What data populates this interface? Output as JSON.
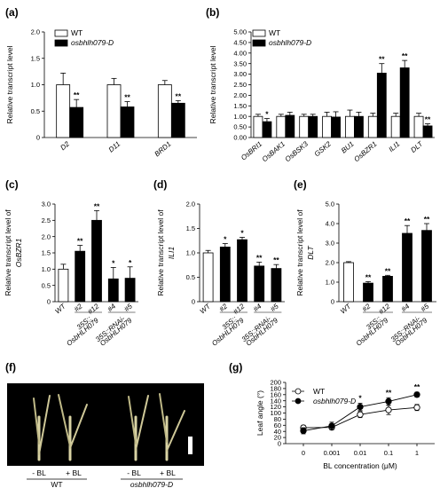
{
  "panels": {
    "a": "(a)",
    "b": "(b)",
    "c": "(c)",
    "d": "(d)",
    "e": "(e)",
    "f": "(f)",
    "g": "(g)"
  },
  "photo": {
    "groups": [
      {
        "name": "WT",
        "italic": false,
        "treatments": [
          "- BL",
          "+ BL"
        ]
      },
      {
        "name": "osbhlh079-D",
        "italic": true,
        "treatments": [
          "- BL",
          "+ BL"
        ]
      }
    ]
  },
  "chart_data": [
    {
      "id": "a",
      "type": "bar",
      "ylabel": "Relative transcript level",
      "ylim": [
        0,
        2.0
      ],
      "yticks": [
        0,
        0.5,
        1.0,
        1.5,
        2.0
      ],
      "ytick_labels": [
        "0",
        "0.5",
        "1.0",
        "1.5",
        "2.0"
      ],
      "categories": [
        "D2",
        "D11",
        "BRD1"
      ],
      "category_italic": true,
      "legend": {
        "position": "top-left"
      },
      "series": [
        {
          "name": "WT",
          "fill": "#ffffff",
          "values": [
            1.0,
            1.0,
            1.0
          ],
          "errors": [
            0.22,
            0.12,
            0.08
          ],
          "sig": [
            "",
            "",
            ""
          ]
        },
        {
          "name": "osbhlh079-D",
          "fill": "#000000",
          "values": [
            0.57,
            0.58,
            0.65
          ],
          "errors": [
            0.15,
            0.1,
            0.05
          ],
          "sig": [
            "**",
            "**",
            "**"
          ]
        }
      ]
    },
    {
      "id": "b",
      "type": "bar",
      "ylabel": "Relative transcript level",
      "ylim": [
        0,
        5.0
      ],
      "yticks": [
        0,
        0.5,
        1.0,
        1.5,
        2.0,
        2.5,
        3.0,
        3.5,
        4.0,
        4.5,
        5.0
      ],
      "ytick_labels": [
        "0.00",
        "0.50",
        "1.00",
        "1.50",
        "2.00",
        "2.50",
        "3.00",
        "3.50",
        "4.00",
        "4.50",
        "5.00"
      ],
      "categories": [
        "OsBRI1",
        "OsBAK1",
        "OsBSK3",
        "GSK2",
        "BU1",
        "OsBZR1",
        "ILI1",
        "DLT"
      ],
      "category_italic": true,
      "legend": {
        "position": "top-left"
      },
      "series": [
        {
          "name": "WT",
          "fill": "#ffffff",
          "values": [
            1.0,
            1.0,
            1.0,
            1.0,
            1.0,
            1.0,
            1.0,
            1.0
          ],
          "errors": [
            0.1,
            0.1,
            0.1,
            0.2,
            0.3,
            0.15,
            0.15,
            0.15
          ],
          "sig": [
            "",
            "",
            "",
            "",
            "",
            "",
            "",
            ""
          ]
        },
        {
          "name": "osbhlh079-D",
          "fill": "#000000",
          "values": [
            0.75,
            1.05,
            1.0,
            0.97,
            1.0,
            3.05,
            3.3,
            0.55
          ],
          "errors": [
            0.15,
            0.15,
            0.1,
            0.25,
            0.2,
            0.45,
            0.35,
            0.1
          ],
          "sig": [
            "*",
            "",
            "",
            "",
            "",
            "**",
            "**",
            "**"
          ]
        }
      ]
    },
    {
      "id": "c",
      "type": "bar",
      "ylabel": [
        "Relative transcript level of",
        "OsBZR1"
      ],
      "ylim": [
        0,
        3.0
      ],
      "yticks": [
        0,
        0.5,
        1.0,
        1.5,
        2.0,
        2.5,
        3.0
      ],
      "ytick_labels": [
        "0",
        "0.5",
        "1.0",
        "1.5",
        "2.0",
        "2.5",
        "3.0"
      ],
      "categories": [
        "WT",
        "#2",
        "#12",
        "#4",
        "#5"
      ],
      "groups": [
        {
          "lines": [
            "35S::",
            "OsbHLH079"
          ],
          "from": 1,
          "to": 2
        },
        {
          "lines": [
            "35S::RNAi-",
            "OsbHLH079"
          ],
          "from": 3,
          "to": 4
        }
      ],
      "values": [
        1.0,
        1.55,
        2.5,
        0.7,
        0.72
      ],
      "errors": [
        0.15,
        0.18,
        0.3,
        0.35,
        0.35
      ],
      "fills": [
        "#ffffff",
        "#000000",
        "#000000",
        "#000000",
        "#000000"
      ],
      "sig": [
        "",
        "**",
        "**",
        "*",
        "*"
      ]
    },
    {
      "id": "d",
      "type": "bar",
      "ylabel": [
        "Relative transcript level of",
        "ILI1"
      ],
      "ylim": [
        0,
        2.0
      ],
      "yticks": [
        0,
        0.5,
        1.0,
        1.5,
        2.0
      ],
      "ytick_labels": [
        "0",
        "0.5",
        "1.0",
        "1.5",
        "2.0"
      ],
      "categories": [
        "WT",
        "#2",
        "#12",
        "#4",
        "#5"
      ],
      "groups": [
        {
          "lines": [
            "35S::",
            "OsbHLH079"
          ],
          "from": 1,
          "to": 2
        },
        {
          "lines": [
            "35S::RNAi-",
            "OsbHLH079"
          ],
          "from": 3,
          "to": 4
        }
      ],
      "values": [
        1.0,
        1.12,
        1.27,
        0.73,
        0.68
      ],
      "errors": [
        0.05,
        0.07,
        0.05,
        0.08,
        0.08
      ],
      "fills": [
        "#ffffff",
        "#000000",
        "#000000",
        "#000000",
        "#000000"
      ],
      "sig": [
        "",
        "*",
        "*",
        "**",
        "**"
      ]
    },
    {
      "id": "e",
      "type": "bar",
      "ylabel": [
        "Relative transcript level of",
        "DLT"
      ],
      "ylim": [
        0,
        5.0
      ],
      "yticks": [
        0,
        1.0,
        2.0,
        3.0,
        4.0,
        5.0
      ],
      "ytick_labels": [
        "0",
        "1.0",
        "2.0",
        "3.0",
        "4.0",
        "5.0"
      ],
      "categories": [
        "WT",
        "#2",
        "#12",
        "#4",
        "#5"
      ],
      "groups": [
        {
          "lines": [
            "35S::",
            "OsbHLH079"
          ],
          "from": 1,
          "to": 2
        },
        {
          "lines": [
            "35S::RNAi-",
            "OsbHLH079"
          ],
          "from": 3,
          "to": 4
        }
      ],
      "values": [
        2.0,
        0.95,
        1.3,
        3.5,
        3.65
      ],
      "errors": [
        0.05,
        0.08,
        0.05,
        0.4,
        0.35
      ],
      "fills": [
        "#ffffff",
        "#000000",
        "#000000",
        "#000000",
        "#000000"
      ],
      "sig": [
        "",
        "**",
        "**",
        "**",
        "**"
      ]
    },
    {
      "id": "g",
      "type": "line",
      "xlabel": "BL concentration (μM)",
      "ylabel": "Leaf angle (°)",
      "x": [
        "0",
        "0.001",
        "0.01",
        "0.1",
        "1"
      ],
      "ylim": [
        0,
        200
      ],
      "yticks": [
        0,
        20,
        40,
        60,
        80,
        100,
        120,
        140,
        160,
        180,
        200
      ],
      "ytick_labels": [
        "0",
        "20",
        "40",
        "60",
        "80",
        "100",
        "120",
        "140",
        "160",
        "180",
        "200"
      ],
      "legend": {
        "position": "top-left"
      },
      "series": [
        {
          "name": "WT",
          "marker": "open-circle",
          "values": [
            52,
            53,
            95,
            110,
            118
          ],
          "errors": [
            8,
            8,
            10,
            15,
            10
          ]
        },
        {
          "name": "osbhlh079-D",
          "marker": "filled-circle",
          "values": [
            42,
            58,
            120,
            138,
            160
          ],
          "errors": [
            10,
            12,
            12,
            12,
            8
          ]
        }
      ],
      "sig": [
        "",
        "",
        "*",
        "**",
        "**"
      ]
    }
  ]
}
